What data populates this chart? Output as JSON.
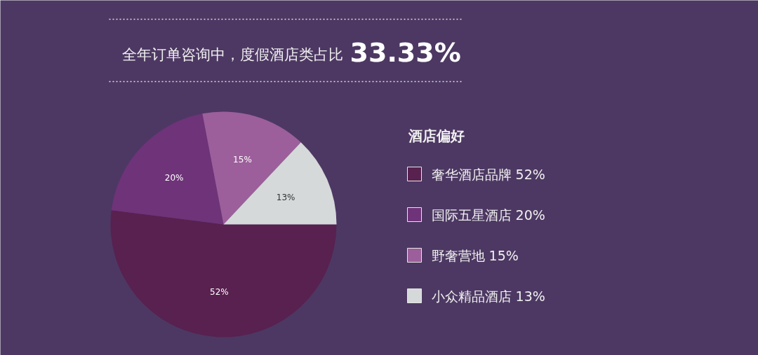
{
  "chart_data": {
    "type": "pie",
    "title": "全年订单咨询中，度假酒店类占比",
    "annotations": [
      "33.33%"
    ],
    "legend_title": "酒店偏好",
    "legend": "right",
    "categories": [
      "奢华酒店品牌 52%",
      "国际五星酒店 20%",
      "野奢营地 15%",
      "小众精品酒店 13%"
    ],
    "values": [
      52,
      20,
      15,
      13
    ],
    "colors": [
      "#58214f",
      "#6e3379",
      "#9c5f9b",
      "#d5d9d9"
    ],
    "value_labels": [
      "52%",
      "20%",
      "15%",
      "13%"
    ]
  }
}
